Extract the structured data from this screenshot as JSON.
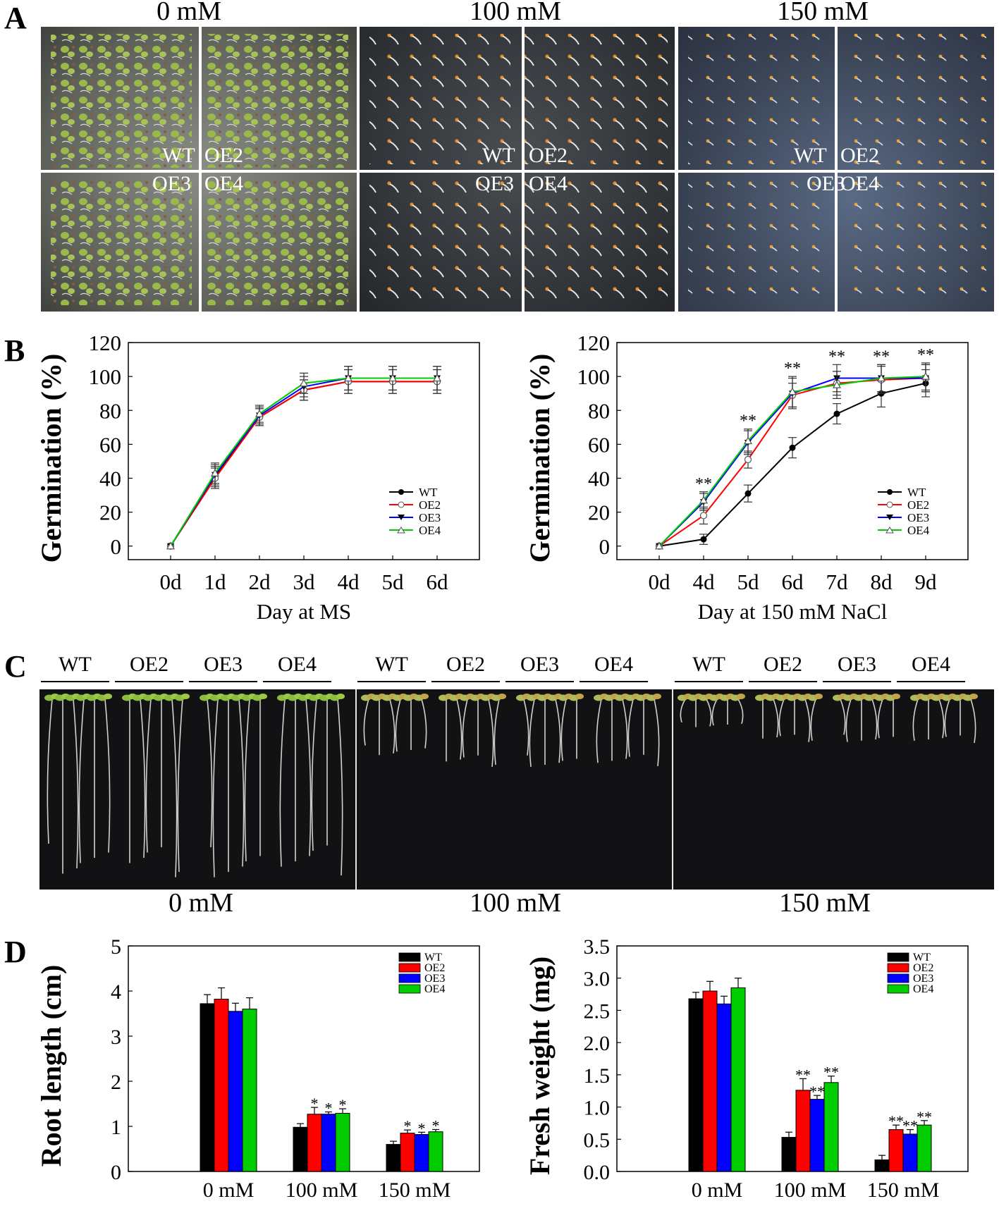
{
  "panel_letters": {
    "a": "A",
    "b": "B",
    "c": "C",
    "d": "D"
  },
  "panel_a": {
    "conditions": [
      "0 mM",
      "100 mM",
      "150 mM"
    ],
    "genotypes": {
      "tl": "WT",
      "tr": "OE2",
      "bl": "OE3",
      "br": "OE4"
    }
  },
  "panel_c": {
    "genotype_headers": [
      "WT",
      "OE2",
      "OE3",
      "OE4"
    ],
    "conditions": [
      "0 mM",
      "100 mM",
      "150 mM"
    ]
  },
  "legend": [
    "WT",
    "OE2",
    "OE3",
    "OE4"
  ],
  "colors": {
    "WT": "#000000",
    "OE2": "#ff0000",
    "OE3": "#0000ff",
    "OE4": "#00cc00"
  },
  "chart_data": [
    {
      "id": "b-left",
      "type": "line",
      "title": "",
      "xlabel": "Day at MS",
      "ylabel": "Germination (%)",
      "categories": [
        "0d",
        "1d",
        "2d",
        "3d",
        "4d",
        "5d",
        "6d"
      ],
      "yticks": [
        "0",
        "20",
        "40",
        "60",
        "80",
        "100",
        "120"
      ],
      "ylim": [
        -8,
        120
      ],
      "series": [
        {
          "name": "WT",
          "values": [
            0,
            41,
            76,
            92,
            97,
            97,
            97
          ],
          "err": [
            0,
            6,
            5,
            6,
            7,
            7,
            7
          ]
        },
        {
          "name": "OE2",
          "values": [
            0,
            40,
            76,
            92,
            97,
            97,
            97
          ],
          "err": [
            0,
            6,
            5,
            6,
            7,
            7,
            7
          ]
        },
        {
          "name": "OE3",
          "values": [
            0,
            42,
            77,
            94,
            99,
            99,
            99
          ],
          "err": [
            0,
            6,
            5,
            6,
            7,
            7,
            7
          ]
        },
        {
          "name": "OE4",
          "values": [
            0,
            43,
            78,
            96,
            99,
            99,
            99
          ],
          "err": [
            0,
            6,
            5,
            6,
            7,
            7,
            7
          ]
        }
      ],
      "significance": [
        "",
        "",
        "",
        "",
        "",
        "",
        ""
      ]
    },
    {
      "id": "b-right",
      "type": "line",
      "title": "",
      "xlabel": "Day at 150 mM NaCl",
      "ylabel": "Germination (%)",
      "categories": [
        "0d",
        "4d",
        "5d",
        "6d",
        "7d",
        "8d",
        "9d"
      ],
      "yticks": [
        "0",
        "20",
        "40",
        "60",
        "80",
        "100",
        "120"
      ],
      "ylim": [
        -8,
        120
      ],
      "series": [
        {
          "name": "WT",
          "values": [
            0,
            4,
            31,
            58,
            78,
            90,
            96
          ],
          "err": [
            0,
            3,
            5,
            6,
            6,
            8,
            8
          ]
        },
        {
          "name": "OE2",
          "values": [
            0,
            18,
            51,
            89,
            96,
            98,
            99
          ],
          "err": [
            0,
            5,
            5,
            7,
            7,
            8,
            8
          ]
        },
        {
          "name": "OE3",
          "values": [
            0,
            26,
            61,
            90,
            99,
            99,
            99
          ],
          "err": [
            0,
            5,
            7,
            9,
            8,
            8,
            8
          ]
        },
        {
          "name": "OE4",
          "values": [
            0,
            27,
            62,
            91,
            95,
            99,
            100
          ],
          "err": [
            0,
            5,
            7,
            9,
            8,
            8,
            8
          ]
        }
      ],
      "significance": [
        "",
        "**",
        "**",
        "**",
        "**",
        "**",
        "**"
      ]
    },
    {
      "id": "d-left",
      "type": "bar",
      "title": "",
      "xlabel": "",
      "ylabel": "Root length (cm)",
      "categories": [
        "0 mM",
        "100 mM",
        "150 mM"
      ],
      "yticks": [
        "0",
        "1",
        "2",
        "3",
        "4",
        "5"
      ],
      "ylim": [
        0,
        5
      ],
      "series": [
        {
          "name": "WT",
          "values": [
            3.72,
            0.98,
            0.6
          ],
          "err": [
            0.2,
            0.08,
            0.07
          ],
          "sig": [
            "",
            "",
            ""
          ]
        },
        {
          "name": "OE2",
          "values": [
            3.82,
            1.27,
            0.85
          ],
          "err": [
            0.25,
            0.15,
            0.07
          ],
          "sig": [
            "",
            "*",
            "*"
          ]
        },
        {
          "name": "OE3",
          "values": [
            3.55,
            1.27,
            0.82
          ],
          "err": [
            0.18,
            0.05,
            0.05
          ],
          "sig": [
            "",
            "*",
            "*"
          ]
        },
        {
          "name": "OE4",
          "values": [
            3.6,
            1.29,
            0.88
          ],
          "err": [
            0.25,
            0.1,
            0.05
          ],
          "sig": [
            "",
            "*",
            "*"
          ]
        }
      ]
    },
    {
      "id": "d-right",
      "type": "bar",
      "title": "",
      "xlabel": "",
      "ylabel": "Fresh weight (mg)",
      "categories": [
        "0 mM",
        "100 mM",
        "150 mM"
      ],
      "yticks": [
        "0.0",
        "0.5",
        "1.0",
        "1.5",
        "2.0",
        "2.5",
        "3.0",
        "3.5"
      ],
      "ylim": [
        0,
        3.5
      ],
      "series": [
        {
          "name": "WT",
          "values": [
            2.68,
            0.53,
            0.18
          ],
          "err": [
            0.1,
            0.08,
            0.07
          ],
          "sig": [
            "",
            "",
            ""
          ]
        },
        {
          "name": "OE2",
          "values": [
            2.8,
            1.26,
            0.65
          ],
          "err": [
            0.15,
            0.18,
            0.07
          ],
          "sig": [
            "",
            "**",
            "**"
          ]
        },
        {
          "name": "OE3",
          "values": [
            2.6,
            1.12,
            0.58
          ],
          "err": [
            0.12,
            0.06,
            0.07
          ],
          "sig": [
            "",
            "**",
            "**"
          ]
        },
        {
          "name": "OE4",
          "values": [
            2.85,
            1.38,
            0.72
          ],
          "err": [
            0.15,
            0.1,
            0.07
          ],
          "sig": [
            "",
            "**",
            "**"
          ]
        }
      ]
    }
  ]
}
